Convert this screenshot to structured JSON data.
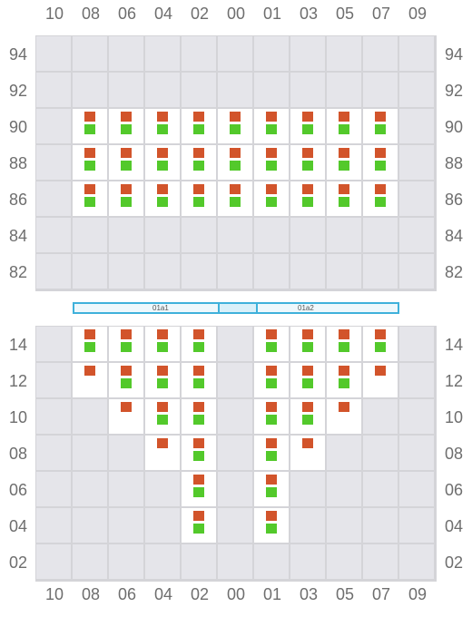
{
  "columns": [
    "10",
    "08",
    "06",
    "04",
    "02",
    "00",
    "01",
    "03",
    "05",
    "07",
    "09"
  ],
  "upper": {
    "rows": [
      "94",
      "92",
      "90",
      "88",
      "86",
      "84",
      "82"
    ],
    "active": {
      "90": [
        1,
        2,
        3,
        4,
        5,
        6,
        7,
        8,
        9
      ],
      "88": [
        1,
        2,
        3,
        4,
        5,
        6,
        7,
        8,
        9
      ],
      "86": [
        1,
        2,
        3,
        4,
        5,
        6,
        7,
        8,
        9
      ]
    },
    "markers": {
      "90": {
        "1": "rg",
        "2": "rg",
        "3": "rg",
        "4": "rg",
        "5": "rg",
        "6": "rg",
        "7": "rg",
        "8": "rg",
        "9": "rg"
      },
      "88": {
        "1": "rg",
        "2": "rg",
        "3": "rg",
        "4": "rg",
        "5": "rg",
        "6": "rg",
        "7": "rg",
        "8": "rg",
        "9": "rg"
      },
      "86": {
        "1": "rg",
        "2": "rg",
        "3": "rg",
        "4": "rg",
        "5": "rg",
        "6": "rg",
        "7": "rg",
        "8": "rg",
        "9": "rg"
      }
    }
  },
  "aisle": {
    "left_label": "01a1",
    "right_label": "01a2"
  },
  "lower": {
    "rows": [
      "14",
      "12",
      "10",
      "08",
      "06",
      "04",
      "02"
    ],
    "active": {
      "14": [
        1,
        2,
        3,
        4,
        6,
        7,
        8,
        9
      ],
      "12": [
        1,
        2,
        3,
        4,
        6,
        7,
        8,
        9
      ],
      "10": [
        2,
        3,
        4,
        6,
        7,
        8
      ],
      "08": [
        3,
        4,
        6,
        7
      ],
      "06": [
        4,
        6
      ],
      "04": [
        4,
        6
      ]
    },
    "markers": {
      "14": {
        "1": "rg",
        "2": "rg",
        "3": "rg",
        "4": "rg",
        "6": "rg",
        "7": "rg",
        "8": "rg",
        "9": "rg"
      },
      "12": {
        "1": "r",
        "2": "rg",
        "3": "rg",
        "4": "rg",
        "6": "rg",
        "7": "rg",
        "8": "rg",
        "9": "r"
      },
      "10": {
        "2": "r",
        "3": "rg",
        "4": "rg",
        "6": "rg",
        "7": "rg",
        "8": "r"
      },
      "08": {
        "3": "r",
        "4": "rg",
        "6": "rg",
        "7": "r"
      },
      "06": {
        "4": "rg",
        "6": "rg"
      },
      "04": {
        "4": "rg",
        "6": "rg"
      }
    }
  },
  "colors": {
    "red_marker": "#d2542b",
    "green_marker": "#53c92b",
    "active_cell": "#ffffff",
    "inactive_cell": "#e5e5ea",
    "aisle_border": "#3fb1db"
  }
}
